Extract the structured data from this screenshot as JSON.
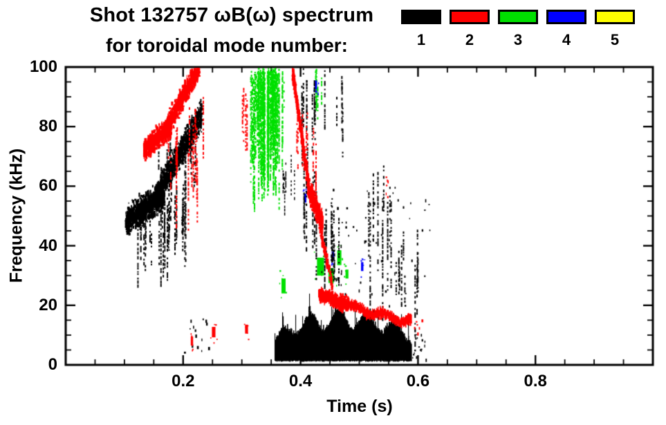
{
  "chart_data": {
    "type": "scatter",
    "title": "Shot 132757 ωB(ω) spectrum",
    "subtitle": "for toroidal mode number:",
    "xlabel": "Time (s)",
    "ylabel": "Frequency (kHz)",
    "xlim": [
      0,
      1
    ],
    "ylim": [
      0,
      100
    ],
    "grid": false,
    "xticks": {
      "values": [
        0.2,
        0.4,
        0.6,
        0.8
      ],
      "labels": [
        "0.2",
        "0.4",
        "0.6",
        "0.8"
      ],
      "minor_step": 0.05
    },
    "yticks": {
      "values": [
        0,
        20,
        40,
        60,
        80,
        100
      ],
      "labels": [
        "0",
        "20",
        "40",
        "60",
        "80",
        "100"
      ],
      "minor_step": 5
    },
    "legend": {
      "position": "top-right",
      "entries": [
        {
          "label": "1",
          "color": "#000000"
        },
        {
          "label": "2",
          "color": "#ff0000"
        },
        {
          "label": "3",
          "color": "#00e000"
        },
        {
          "label": "4",
          "color": "#0000ff"
        },
        {
          "label": "5",
          "color": "#ffff00"
        }
      ]
    },
    "features": [
      {
        "mode": 3,
        "kind": "vstreaks",
        "t": [
          0.314,
          0.372
        ],
        "ftop": [
          95,
          100
        ],
        "flen": [
          10,
          46
        ],
        "n": 44,
        "w": 2
      },
      {
        "mode": 3,
        "kind": "vstreaks",
        "t": [
          0.326,
          0.36
        ],
        "ftop": [
          97,
          100
        ],
        "flen": [
          18,
          44
        ],
        "n": 40,
        "w": 2
      },
      {
        "mode": 3,
        "kind": "vstreaks",
        "t": [
          0.424,
          0.438
        ],
        "ftop": [
          93,
          100
        ],
        "flen": [
          6,
          18
        ],
        "n": 6,
        "w": 2
      },
      {
        "mode": 3,
        "kind": "speck",
        "t": 0.371,
        "f": 26.5,
        "w": 0.007,
        "h": 5
      },
      {
        "mode": 3,
        "kind": "speck",
        "t": 0.434,
        "f": 33,
        "w": 0.012,
        "h": 6
      },
      {
        "mode": 3,
        "kind": "speck",
        "t": 0.452,
        "f": 30,
        "w": 0.009,
        "h": 5
      },
      {
        "mode": 3,
        "kind": "speck",
        "t": 0.466,
        "f": 36,
        "w": 0.007,
        "h": 5
      },
      {
        "mode": 3,
        "kind": "speck",
        "t": 0.479,
        "f": 30.5,
        "w": 0.005,
        "h": 3
      },
      {
        "mode": 4,
        "kind": "speck",
        "t": 0.426,
        "f": 94,
        "w": 0.004,
        "h": 3
      },
      {
        "mode": 4,
        "kind": "speck",
        "t": 0.408,
        "f": 56,
        "w": 0.004,
        "h": 3
      },
      {
        "mode": 4,
        "kind": "speck",
        "t": 0.455,
        "f": 36.5,
        "w": 0.004,
        "h": 3
      },
      {
        "mode": 4,
        "kind": "speck",
        "t": 0.505,
        "f": 33,
        "w": 0.004,
        "h": 3
      },
      {
        "mode": 1,
        "kind": "chirp",
        "t": [
          0.102,
          0.168
        ],
        "f": [
          48,
          57
        ],
        "spread": 4.5,
        "n": 950
      },
      {
        "mode": 1,
        "kind": "chirp",
        "t": [
          0.155,
          0.232
        ],
        "f": [
          57,
          84
        ],
        "spread": 4.5,
        "n": 950
      },
      {
        "mode": 1,
        "kind": "vstreaks",
        "t": [
          0.115,
          0.205
        ],
        "ftop": [
          44,
          62
        ],
        "flen": [
          6,
          28
        ],
        "n": 34,
        "w": 2
      },
      {
        "mode": 1,
        "kind": "vstreaks",
        "t": [
          0.15,
          0.225
        ],
        "ftop": [
          60,
          80
        ],
        "flen": [
          5,
          16
        ],
        "n": 14,
        "w": 2
      },
      {
        "mode": 1,
        "kind": "dots",
        "t": [
          0.2,
          0.248
        ],
        "f": [
          4,
          16
        ],
        "n": 14
      },
      {
        "mode": 1,
        "kind": "band",
        "t": [
          0.356,
          0.588
        ],
        "f_base": 1.5,
        "f_top": [
          7,
          19
        ],
        "wave": 0.048
      },
      {
        "mode": 1,
        "kind": "dots",
        "t": [
          0.588,
          0.615
        ],
        "f": [
          2,
          12
        ],
        "n": 18
      },
      {
        "mode": 1,
        "kind": "vstreaks",
        "t": [
          0.398,
          0.428
        ],
        "ftop": [
          86,
          100
        ],
        "flen": [
          10,
          35
        ],
        "n": 9,
        "w": 2
      },
      {
        "mode": 1,
        "kind": "vstreaks",
        "t": [
          0.405,
          0.428
        ],
        "ftop": [
          55,
          76
        ],
        "flen": [
          10,
          38
        ],
        "n": 8,
        "w": 2
      },
      {
        "mode": 1,
        "kind": "vstreaks",
        "t": [
          0.436,
          0.468
        ],
        "ftop": [
          40,
          56
        ],
        "flen": [
          8,
          26
        ],
        "n": 10,
        "w": 2
      },
      {
        "mode": 1,
        "kind": "vstreaks",
        "t": [
          0.44,
          0.472
        ],
        "ftop": [
          78,
          100
        ],
        "flen": [
          5,
          20
        ],
        "n": 6,
        "w": 2
      },
      {
        "mode": 1,
        "kind": "vstreaks",
        "t": [
          0.515,
          0.558
        ],
        "ftop": [
          52,
          70
        ],
        "flen": [
          14,
          45
        ],
        "n": 9,
        "w": 2
      },
      {
        "mode": 1,
        "kind": "vstreaks",
        "t": [
          0.555,
          0.607
        ],
        "ftop": [
          28,
          48
        ],
        "flen": [
          8,
          30
        ],
        "n": 10,
        "w": 2
      },
      {
        "mode": 1,
        "kind": "vstreaks",
        "t": [
          0.368,
          0.392
        ],
        "ftop": [
          58,
          80
        ],
        "flen": [
          5,
          18
        ],
        "n": 6,
        "w": 1.5
      },
      {
        "mode": 1,
        "kind": "dots",
        "t": [
          0.43,
          0.62
        ],
        "f": [
          20,
          60
        ],
        "n": 55
      },
      {
        "mode": 2,
        "kind": "chirp",
        "t": [
          0.133,
          0.18
        ],
        "f": [
          72,
          80
        ],
        "spread": 3.5,
        "n": 700
      },
      {
        "mode": 2,
        "kind": "chirp",
        "t": [
          0.173,
          0.228
        ],
        "f": [
          80,
          100
        ],
        "spread": 3.5,
        "n": 800
      },
      {
        "mode": 2,
        "kind": "vstreaks",
        "t": [
          0.175,
          0.235
        ],
        "ftop": [
          68,
          92
        ],
        "flen": [
          8,
          30
        ],
        "n": 15,
        "w": 2
      },
      {
        "mode": 2,
        "kind": "vstreaks",
        "t": [
          0.3,
          0.311
        ],
        "ftop": [
          87,
          96
        ],
        "flen": [
          10,
          24
        ],
        "n": 4,
        "w": 2
      },
      {
        "mode": 2,
        "kind": "speck",
        "t": 0.215,
        "f": 8,
        "w": 0.004,
        "h": 3
      },
      {
        "mode": 2,
        "kind": "speck",
        "t": 0.252,
        "f": 11,
        "w": 0.006,
        "h": 3.5
      },
      {
        "mode": 2,
        "kind": "speck",
        "t": 0.308,
        "f": 12,
        "w": 0.005,
        "h": 3
      },
      {
        "mode": 2,
        "kind": "chirp",
        "t": [
          0.386,
          0.414
        ],
        "f": [
          99,
          60
        ],
        "spread": 3,
        "n": 420
      },
      {
        "mode": 2,
        "kind": "vstreaks",
        "t": [
          0.393,
          0.428
        ],
        "ftop": [
          58,
          86
        ],
        "flen": [
          8,
          26
        ],
        "n": 10,
        "w": 2
      },
      {
        "mode": 2,
        "kind": "chirp",
        "t": [
          0.412,
          0.438
        ],
        "f": [
          60,
          47
        ],
        "spread": 3.5,
        "n": 420
      },
      {
        "mode": 2,
        "kind": "chirp",
        "t": [
          0.433,
          0.455
        ],
        "f": [
          46,
          26
        ],
        "spread": 2.5,
        "n": 130
      },
      {
        "mode": 2,
        "kind": "ribbon",
        "t": [
          0.43,
          0.588
        ],
        "f": [
          24,
          14.5
        ],
        "th": 3.2
      },
      {
        "mode": 2,
        "kind": "chirp",
        "t": [
          0.432,
          0.482
        ],
        "f": [
          23.5,
          20.5
        ],
        "spread": 2.2,
        "n": 320
      },
      {
        "mode": 2,
        "kind": "dots",
        "t": [
          0.538,
          0.552
        ],
        "f": [
          55,
          65
        ],
        "n": 6
      },
      {
        "mode": 2,
        "kind": "dots",
        "t": [
          0.585,
          0.606
        ],
        "f": [
          10,
          16
        ],
        "n": 8
      }
    ]
  }
}
